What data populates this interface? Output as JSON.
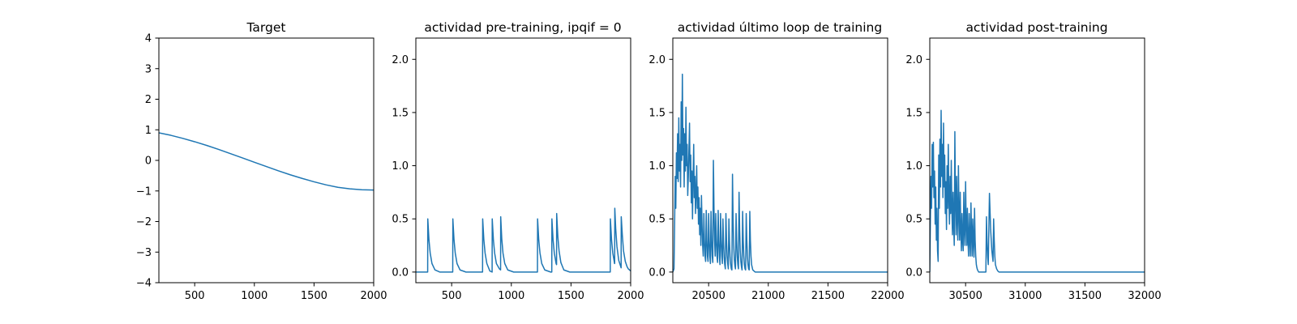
{
  "chart_data": [
    {
      "type": "line",
      "title": "Target",
      "xlabel": "",
      "ylabel": "",
      "xlim": [
        200,
        2000
      ],
      "ylim": [
        -4,
        4
      ],
      "xticks": [
        500,
        1000,
        1500,
        2000
      ],
      "yticks": [
        -4,
        -3,
        -2,
        -1,
        0,
        1,
        2,
        3,
        4
      ],
      "grid": false,
      "color": "#1f77b4",
      "series": [
        {
          "x": [
            200,
            300,
            400,
            500,
            600,
            700,
            800,
            900,
            1000,
            1100,
            1200,
            1300,
            1400,
            1500,
            1600,
            1700,
            1800,
            1900,
            2000
          ],
          "values": [
            0.9,
            0.82,
            0.72,
            0.61,
            0.49,
            0.36,
            0.22,
            0.08,
            -0.06,
            -0.2,
            -0.34,
            -0.47,
            -0.59,
            -0.7,
            -0.8,
            -0.88,
            -0.93,
            -0.96,
            -0.97
          ]
        }
      ]
    },
    {
      "type": "line",
      "title": "actividad pre-training, ipqif = 0",
      "xlabel": "",
      "ylabel": "",
      "xlim": [
        200,
        2000
      ],
      "ylim": [
        -0.1,
        2.2
      ],
      "xticks": [
        500,
        1000,
        1500,
        2000
      ],
      "yticks": [
        0.0,
        0.5,
        1.0,
        1.5,
        2.0
      ],
      "ytick_labels": [
        "0.0",
        "0.5",
        "1.0",
        "1.5",
        "2.0"
      ],
      "grid": false,
      "color": "#1f77b4",
      "series": [
        {
          "x": [
            200,
            299,
            300,
            310,
            320,
            335,
            360,
            400,
            509,
            510,
            520,
            530,
            545,
            570,
            620,
            759,
            760,
            770,
            780,
            795,
            820,
            839,
            840,
            850,
            860,
            875,
            900,
            910,
            911,
            920,
            930,
            945,
            970,
            1020,
            1219,
            1220,
            1230,
            1240,
            1255,
            1280,
            1330,
            1339,
            1340,
            1350,
            1360,
            1375,
            1379,
            1380,
            1390,
            1400,
            1415,
            1440,
            1490,
            1829,
            1830,
            1840,
            1850,
            1865,
            1866,
            1867,
            1875,
            1885,
            1900,
            1920,
            1921,
            1930,
            1940,
            1955,
            1970,
            1980,
            1990,
            2000
          ],
          "values": [
            0.0,
            0.0,
            0.5,
            0.3,
            0.18,
            0.08,
            0.02,
            0.0,
            0.0,
            0.5,
            0.3,
            0.18,
            0.08,
            0.02,
            0.0,
            0.0,
            0.5,
            0.3,
            0.18,
            0.08,
            0.01,
            0.0,
            0.5,
            0.3,
            0.18,
            0.08,
            0.03,
            0.02,
            0.52,
            0.31,
            0.18,
            0.08,
            0.02,
            0.0,
            0.0,
            0.5,
            0.3,
            0.18,
            0.08,
            0.02,
            0.0,
            0.0,
            0.5,
            0.3,
            0.18,
            0.08,
            0.07,
            0.55,
            0.33,
            0.2,
            0.09,
            0.02,
            0.0,
            0.0,
            0.5,
            0.3,
            0.18,
            0.08,
            0.08,
            0.6,
            0.4,
            0.24,
            0.11,
            0.04,
            0.52,
            0.35,
            0.2,
            0.1,
            0.05,
            0.03,
            0.02,
            0.01
          ]
        }
      ]
    },
    {
      "type": "line",
      "title": "actividad último loop de training",
      "xlabel": "",
      "ylabel": "",
      "xlim": [
        20200,
        22000
      ],
      "ylim": [
        -0.1,
        2.2
      ],
      "xticks": [
        20500,
        21000,
        21500,
        22000
      ],
      "yticks": [
        0.0,
        0.5,
        1.0,
        1.5,
        2.0
      ],
      "ytick_labels": [
        "0.0",
        "0.5",
        "1.0",
        "1.5",
        "2.0"
      ],
      "grid": false,
      "color": "#1f77b4",
      "series": [
        {
          "x": [
            20200,
            20210,
            20215,
            20220,
            20225,
            20230,
            20235,
            20240,
            20245,
            20250,
            20255,
            20260,
            20265,
            20270,
            20275,
            20280,
            20285,
            20290,
            20295,
            20300,
            20305,
            20310,
            20315,
            20320,
            20325,
            20330,
            20335,
            20340,
            20345,
            20350,
            20355,
            20360,
            20365,
            20370,
            20375,
            20380,
            20385,
            20390,
            20395,
            20400,
            20405,
            20410,
            20415,
            20420,
            20425,
            20430,
            20435,
            20440,
            20445,
            20450,
            20455,
            20460,
            20465,
            20470,
            20475,
            20480,
            20485,
            20490,
            20495,
            20500,
            20505,
            20510,
            20515,
            20520,
            20525,
            20530,
            20535,
            20540,
            20545,
            20550,
            20555,
            20560,
            20565,
            20570,
            20575,
            20580,
            20585,
            20590,
            20595,
            20600,
            20605,
            20610,
            20615,
            20620,
            20625,
            20630,
            20635,
            20640,
            20645,
            20650,
            20655,
            20660,
            20665,
            20670,
            20675,
            20680,
            20685,
            20690,
            20695,
            20700,
            20705,
            20710,
            20715,
            20720,
            20725,
            20730,
            20735,
            20740,
            20745,
            20750,
            20755,
            20760,
            20765,
            20770,
            20775,
            20780,
            20785,
            20790,
            20795,
            20800,
            20805,
            20810,
            20815,
            20820,
            20825,
            20830,
            20835,
            20840,
            20845,
            20850,
            20855,
            20860,
            20870,
            20880,
            20890,
            20900,
            20920,
            20950,
            21000,
            22000
          ],
          "values": [
            0.0,
            0.03,
            0.45,
            0.9,
            0.6,
            1.12,
            0.88,
            1.3,
            0.85,
            1.45,
            0.95,
            1.2,
            0.8,
            1.6,
            1.05,
            1.86,
            1.1,
            1.35,
            0.8,
            1.3,
            0.95,
            1.55,
            1.0,
            1.2,
            0.72,
            0.9,
            1.15,
            1.4,
            0.85,
            1.1,
            0.65,
            0.95,
            0.5,
            0.9,
            1.2,
            0.7,
            0.9,
            0.55,
            0.75,
            1.0,
            0.6,
            0.8,
            0.45,
            0.7,
            0.35,
            0.6,
            0.25,
            0.72,
            0.45,
            0.25,
            0.15,
            0.55,
            0.3,
            0.15,
            0.1,
            0.58,
            0.3,
            0.15,
            0.1,
            0.55,
            0.3,
            0.15,
            0.08,
            0.57,
            0.3,
            0.15,
            0.09,
            1.05,
            0.6,
            0.3,
            0.15,
            0.55,
            0.3,
            0.15,
            0.09,
            0.58,
            0.3,
            0.15,
            0.07,
            0.55,
            0.3,
            0.15,
            0.08,
            0.5,
            0.28,
            0.14,
            0.07,
            0.03,
            0.55,
            0.3,
            0.15,
            0.08,
            0.03,
            0.5,
            0.28,
            0.14,
            0.07,
            0.03,
            0.02,
            0.92,
            0.5,
            0.25,
            0.12,
            0.06,
            0.03,
            0.55,
            0.3,
            0.15,
            0.07,
            0.03,
            0.75,
            0.4,
            0.2,
            0.1,
            0.05,
            0.02,
            0.57,
            0.3,
            0.15,
            0.07,
            0.03,
            0.02,
            0.55,
            0.3,
            0.15,
            0.07,
            0.03,
            0.02,
            0.57,
            0.3,
            0.15,
            0.07,
            0.02,
            0.01,
            0.0,
            0.0,
            0.0,
            0.0,
            0.0,
            0.0
          ]
        }
      ]
    },
    {
      "type": "line",
      "title": "actividad post-training",
      "xlabel": "",
      "ylabel": "",
      "xlim": [
        30200,
        32000
      ],
      "ylim": [
        -0.1,
        2.2
      ],
      "xticks": [
        30500,
        31000,
        31500,
        32000
      ],
      "yticks": [
        0.0,
        0.5,
        1.0,
        1.5,
        2.0
      ],
      "ytick_labels": [
        "0.0",
        "0.5",
        "1.0",
        "1.5",
        "2.0"
      ],
      "grid": false,
      "color": "#1f77b4",
      "series": [
        {
          "x": [
            30200,
            30205,
            30210,
            30215,
            30220,
            30225,
            30230,
            30235,
            30240,
            30245,
            30250,
            30255,
            30260,
            30265,
            30270,
            30275,
            30280,
            30285,
            30290,
            30295,
            30300,
            30305,
            30310,
            30315,
            30320,
            30325,
            30330,
            30335,
            30340,
            30345,
            30350,
            30355,
            30360,
            30365,
            30370,
            30375,
            30380,
            30385,
            30390,
            30395,
            30400,
            30405,
            30410,
            30415,
            30420,
            30425,
            30430,
            30435,
            30440,
            30445,
            30450,
            30455,
            30460,
            30465,
            30470,
            30475,
            30480,
            30485,
            30490,
            30495,
            30500,
            30505,
            30510,
            30515,
            30520,
            30525,
            30530,
            30535,
            30540,
            30545,
            30550,
            30555,
            30560,
            30565,
            30570,
            30575,
            30580,
            30585,
            30590,
            30595,
            30600,
            30605,
            30610,
            30615,
            30620,
            30625,
            30630,
            30635,
            30640,
            30645,
            30650,
            30655,
            30660,
            30665,
            30670,
            30675,
            30680,
            30685,
            30690,
            30700,
            30710,
            30720,
            30730,
            30735,
            30740,
            30745,
            30750,
            30760,
            30770,
            30780,
            30800,
            30850,
            31000,
            32000
          ],
          "values": [
            0.0,
            0.5,
            0.9,
            0.6,
            1.2,
            0.8,
            1.22,
            0.7,
            0.95,
            0.45,
            0.8,
            0.3,
            0.6,
            0.2,
            0.1,
            1.1,
            0.6,
            1.25,
            0.8,
            1.52,
            0.9,
            1.2,
            0.7,
            1.4,
            0.8,
            1.1,
            0.55,
            0.85,
            0.4,
            1.0,
            0.6,
            1.2,
            0.7,
            0.45,
            0.9,
            0.55,
            1.05,
            0.6,
            0.35,
            0.75,
            0.45,
            0.25,
            1.32,
            0.7,
            0.35,
            0.9,
            0.5,
            0.3,
            1.0,
            0.55,
            0.3,
            0.75,
            0.4,
            0.2,
            0.55,
            0.3,
            0.2,
            0.75,
            0.4,
            0.25,
            0.85,
            0.45,
            0.25,
            0.6,
            0.3,
            0.15,
            0.55,
            0.3,
            0.15,
            0.65,
            0.35,
            0.15,
            0.5,
            0.28,
            0.14,
            0.6,
            0.3,
            0.15,
            0.07,
            0.04,
            0.02,
            0.01,
            0.0,
            0.0,
            0.0,
            0.0,
            0.0,
            0.0,
            0.0,
            0.0,
            0.0,
            0.0,
            0.0,
            0.0,
            0.0,
            0.52,
            0.28,
            0.14,
            0.07,
            0.74,
            0.4,
            0.2,
            0.1,
            0.5,
            0.3,
            0.15,
            0.07,
            0.03,
            0.01,
            0.0,
            0.0,
            0.0,
            0.0,
            0.0
          ]
        }
      ]
    }
  ]
}
